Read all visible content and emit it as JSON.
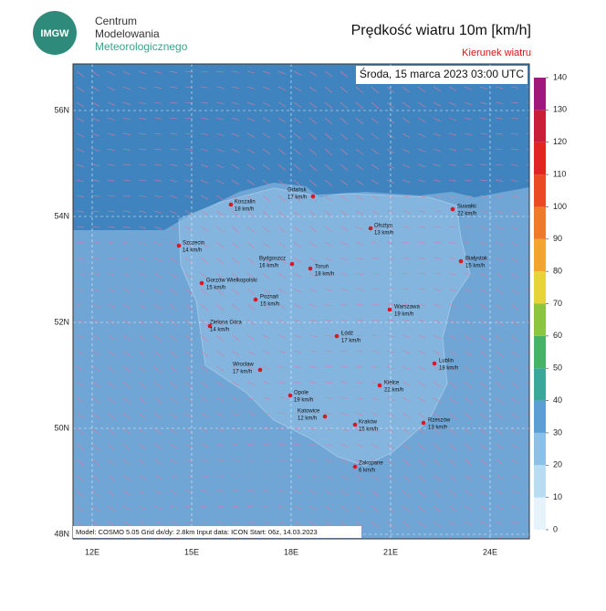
{
  "header": {
    "logo": "IMGW",
    "org_lines": [
      "Centrum",
      "Modelowania",
      "Meteorologicznego"
    ],
    "title": "Prędkość wiatru 10m [km/h]",
    "subtitle": "Kierunek wiatru"
  },
  "map": {
    "date": "Środa, 15 marca 2023 03:00 UTC",
    "footer": "Model: COSMO 5.05  Grid dx/dy: 2.8km  Input data: ICON  Start: 06z, 14.03.2023",
    "lat_ticks": [
      {
        "value": 48,
        "label": "48N"
      },
      {
        "value": 50,
        "label": "50N"
      },
      {
        "value": 52,
        "label": "52N"
      },
      {
        "value": 54,
        "label": "54N"
      },
      {
        "value": 56,
        "label": "56N"
      }
    ],
    "lon_ticks": [
      {
        "value": 12,
        "label": "12E"
      },
      {
        "value": 15,
        "label": "15E"
      },
      {
        "value": 18,
        "label": "18E"
      },
      {
        "value": 21,
        "label": "21E"
      },
      {
        "value": 24,
        "label": "24E"
      }
    ],
    "cities": [
      {
        "name": "Koszalin",
        "speed": "18 km/h"
      },
      {
        "name": "Gdańsk",
        "speed": "17 km/h"
      },
      {
        "name": "Suwałki",
        "speed": "22 km/h"
      },
      {
        "name": "Olsztyn",
        "speed": "13 km/h"
      },
      {
        "name": "Szczecin",
        "speed": "14 km/h"
      },
      {
        "name": "Bydgoszcz",
        "speed": "16 km/h"
      },
      {
        "name": "Toruń",
        "speed": "18 km/h"
      },
      {
        "name": "Białystok",
        "speed": "15 km/h"
      },
      {
        "name": "Gorzów Wielkopolski",
        "speed": "15 km/h"
      },
      {
        "name": "Poznań",
        "speed": "15 km/h"
      },
      {
        "name": "Warszawa",
        "speed": "19 km/h"
      },
      {
        "name": "Zielona Góra",
        "speed": "14 km/h"
      },
      {
        "name": "Łódź",
        "speed": "17 km/h"
      },
      {
        "name": "Lublin",
        "speed": "18 km/h"
      },
      {
        "name": "Wrocław",
        "speed": "17 km/h"
      },
      {
        "name": "Kielce",
        "speed": "22 km/h"
      },
      {
        "name": "Opole",
        "speed": "19 km/h"
      },
      {
        "name": "Katowice",
        "speed": "12 km/h"
      },
      {
        "name": "Rzeszów",
        "speed": "13 km/h"
      },
      {
        "name": "Kraków",
        "speed": "15 km/h"
      },
      {
        "name": "Zakopane",
        "speed": "6 km/h"
      }
    ]
  },
  "colorbar": {
    "ticks": [
      0,
      10,
      20,
      30,
      40,
      50,
      60,
      70,
      80,
      90,
      100,
      110,
      120,
      130,
      140
    ],
    "colors": [
      "#e6f3fb",
      "#b8dcf2",
      "#8cc0e6",
      "#5c9fd3",
      "#3aa89a",
      "#45b466",
      "#8cc63f",
      "#e7d43a",
      "#f3a530",
      "#ef7a2a",
      "#e94c25",
      "#e02622",
      "#c81e3a",
      "#a0197a"
    ]
  }
}
